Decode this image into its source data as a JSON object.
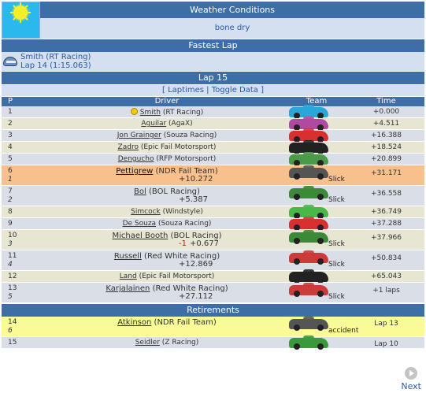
{
  "weather": {
    "title": "Weather Conditions",
    "value": "bone dry",
    "icon": "sun-icon"
  },
  "fastest": {
    "title": "Fastest Lap",
    "driver_line": "Smith (RT Racing)",
    "lap_line": "Lap 14 (1:15.063)",
    "icon": "helmet-icon"
  },
  "lap": {
    "title": "Lap 15",
    "links": {
      "open": "[",
      "laptimes": "Laptimes",
      "sep": "|",
      "toggle": "Toggle Data",
      "close": "]"
    }
  },
  "columns": {
    "pos": "P",
    "driver": "Driver",
    "team": "Team",
    "time": "Time"
  },
  "rows": [
    {
      "pos": "1",
      "name": "Smith",
      "team": "(RT Racing)",
      "time": "+0.000",
      "car_color": "#2aa6d8"
    },
    {
      "pos": "2",
      "name": "Aguilar",
      "team": "(AgaX)",
      "time": "+4.511",
      "car_color": "#b04aa0"
    },
    {
      "pos": "3",
      "name": "Jon Grainger",
      "team": "(Souza Racing)",
      "time": "+16.388",
      "car_color": "#d83030"
    },
    {
      "pos": "4",
      "name": "Zadro",
      "team": "(Epic Fail Motorsport)",
      "time": "+18.524",
      "car_color": "#222222"
    },
    {
      "pos": "5",
      "name": "Dengucho",
      "team": "(RFP Motorsport)",
      "time": "+20.899",
      "car_color": "#4a9a4a"
    },
    {
      "pos": "6",
      "gain": "1",
      "name": "Pettigrew",
      "team": "(NDR Fail Team)",
      "time": "+31.171",
      "delta": "+10.272",
      "tyre": "Slick",
      "car_color": "#555555"
    },
    {
      "pos": "7",
      "gain": "2",
      "name": "Bol",
      "team": "(BOL Racing)",
      "time": "+36.558",
      "delta": "+5.387",
      "tyre": "Slick",
      "car_color": "#3a8a3a"
    },
    {
      "pos": "8",
      "name": "Simcock",
      "team": "(Windstyle)",
      "time": "+36.749",
      "car_color": "#48b848"
    },
    {
      "pos": "9",
      "name": "De Souza",
      "team": "(Souza Racing)",
      "time": "+37.288",
      "car_color": "#d83030"
    },
    {
      "pos": "10",
      "gain": "3",
      "name": "Michael Booth",
      "team": "(BOL Racing)",
      "time": "+37.966",
      "neg": "-1",
      "delta": "+0.677",
      "tyre": "Slick",
      "car_color": "#3a8a3a"
    },
    {
      "pos": "11",
      "gain": "4",
      "name": "Russell",
      "team": "(Red White Racing)",
      "time": "+50.834",
      "delta": "+12.869",
      "tyre": "Slick",
      "car_color": "#cc3a3a"
    },
    {
      "pos": "12",
      "name": "Land",
      "team": "(Epic Fail Motorsport)",
      "time": "+65.043",
      "car_color": "#222222"
    },
    {
      "pos": "13",
      "gain": "5",
      "name": "Karjalainen",
      "team": "(Red White Racing)",
      "time": "+1 laps",
      "delta": "+27.112",
      "tyre": "Slick",
      "car_color": "#cc3a3a"
    }
  ],
  "retirements": {
    "title": "Retirements",
    "rows": [
      {
        "pos": "14",
        "gain": "6",
        "name": "Atkinson",
        "team": "(NDR Fail Team)",
        "time": "Lap 13",
        "tyre": "accident",
        "car_color": "#555555"
      },
      {
        "pos": "15",
        "name": "Seidler",
        "team": "(Z Racing)",
        "time": "Lap 10",
        "car_color": "#3a9a3a"
      }
    ]
  },
  "nav": {
    "next": "Next",
    "icon": "next-arrow-icon"
  },
  "colors": {
    "header": "#3d6ea8",
    "row_a": "#dadfe7",
    "row_b": "#e6e6d2",
    "highlight": "#f8c08c",
    "retired": "#fafa98"
  }
}
